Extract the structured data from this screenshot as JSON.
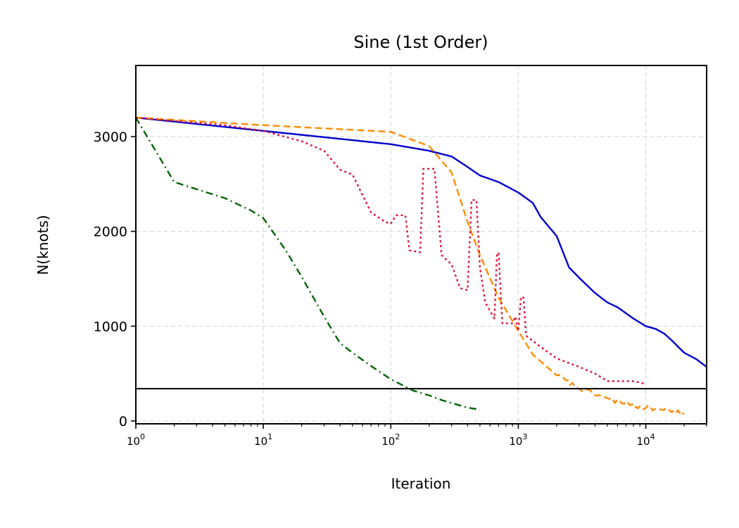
{
  "chart_data": {
    "type": "line",
    "title": "Sine (1st Order)",
    "xlabel": "Iteration",
    "ylabel": "N(knots)",
    "xscale": "log",
    "xlim": [
      1,
      30000
    ],
    "ylim": [
      -30,
      3750
    ],
    "xticks": [
      {
        "base": "10",
        "exp": "0",
        "value": 1
      },
      {
        "base": "10",
        "exp": "1",
        "value": 10
      },
      {
        "base": "10",
        "exp": "2",
        "value": 100
      },
      {
        "base": "10",
        "exp": "3",
        "value": 1000
      },
      {
        "base": "10",
        "exp": "4",
        "value": 10000
      }
    ],
    "yticks": [
      {
        "label": "0",
        "value": 0
      },
      {
        "label": "1000",
        "value": 1000
      },
      {
        "label": "2000",
        "value": 2000
      },
      {
        "label": "3000",
        "value": 3000
      }
    ],
    "grid": true,
    "hline": 340,
    "series": [
      {
        "color": "#0000cc",
        "dash": "",
        "points": [
          [
            1,
            3200
          ],
          [
            10,
            3060
          ],
          [
            100,
            2920
          ],
          [
            200,
            2850
          ],
          [
            300,
            2790
          ],
          [
            400,
            2680
          ],
          [
            500,
            2590
          ],
          [
            700,
            2520
          ],
          [
            1000,
            2410
          ],
          [
            1300,
            2300
          ],
          [
            1500,
            2150
          ],
          [
            2000,
            1950
          ],
          [
            2500,
            1620
          ],
          [
            3000,
            1510
          ],
          [
            4000,
            1350
          ],
          [
            5000,
            1250
          ],
          [
            6000,
            1200
          ],
          [
            8000,
            1080
          ],
          [
            10000,
            1000
          ],
          [
            12000,
            970
          ],
          [
            14000,
            920
          ],
          [
            16000,
            850
          ],
          [
            18000,
            780
          ],
          [
            20000,
            720
          ],
          [
            25000,
            650
          ],
          [
            30000,
            570
          ]
        ]
      },
      {
        "color": "#ff8c00",
        "dash": "10 5",
        "points": [
          [
            1,
            3200
          ],
          [
            10,
            3120
          ],
          [
            100,
            3050
          ],
          [
            200,
            2900
          ],
          [
            300,
            2620
          ],
          [
            400,
            2100
          ],
          [
            500,
            1750
          ],
          [
            700,
            1300
          ],
          [
            1000,
            950
          ],
          [
            1300,
            700
          ],
          [
            2000,
            480
          ],
          [
            3000,
            340
          ],
          [
            5000,
            240
          ],
          [
            7000,
            170
          ],
          [
            10000,
            140
          ],
          [
            15000,
            110
          ],
          [
            20000,
            75
          ]
        ],
        "noise": {
          "from": 2000,
          "to": 20000,
          "amp": 25
        }
      },
      {
        "color": "#dc143c",
        "dash": "3 4",
        "points": [
          [
            1,
            3200
          ],
          [
            5,
            3120
          ],
          [
            10,
            3060
          ],
          [
            20,
            2950
          ],
          [
            30,
            2850
          ],
          [
            40,
            2650
          ],
          [
            50,
            2600
          ],
          [
            70,
            2200
          ],
          [
            90,
            2100
          ],
          [
            100,
            2080
          ],
          [
            110,
            2170
          ],
          [
            130,
            2170
          ],
          [
            140,
            1800
          ],
          [
            170,
            1780
          ],
          [
            180,
            2660
          ],
          [
            220,
            2660
          ],
          [
            250,
            1750
          ],
          [
            300,
            1650
          ],
          [
            350,
            1400
          ],
          [
            400,
            1380
          ],
          [
            430,
            2330
          ],
          [
            470,
            2330
          ],
          [
            500,
            1620
          ],
          [
            550,
            1250
          ],
          [
            650,
            1080
          ],
          [
            680,
            1770
          ],
          [
            700,
            1770
          ],
          [
            750,
            1030
          ],
          [
            900,
            1030
          ],
          [
            950,
            1100
          ],
          [
            1000,
            950
          ],
          [
            1050,
            1310
          ],
          [
            1100,
            1300
          ],
          [
            1150,
            900
          ],
          [
            1500,
            780
          ],
          [
            2000,
            660
          ],
          [
            3000,
            570
          ],
          [
            4000,
            500
          ],
          [
            5000,
            420
          ],
          [
            8000,
            420
          ],
          [
            10000,
            390
          ]
        ]
      },
      {
        "color": "#006400",
        "dash": "10 5 2 5",
        "points": [
          [
            1,
            3200
          ],
          [
            2,
            2520
          ],
          [
            5,
            2350
          ],
          [
            8,
            2220
          ],
          [
            10,
            2140
          ],
          [
            15,
            1800
          ],
          [
            20,
            1520
          ],
          [
            30,
            1100
          ],
          [
            40,
            820
          ],
          [
            50,
            720
          ],
          [
            70,
            580
          ],
          [
            100,
            440
          ],
          [
            150,
            320
          ],
          [
            200,
            270
          ],
          [
            250,
            220
          ],
          [
            300,
            190
          ],
          [
            400,
            140
          ],
          [
            500,
            120
          ]
        ]
      }
    ]
  }
}
